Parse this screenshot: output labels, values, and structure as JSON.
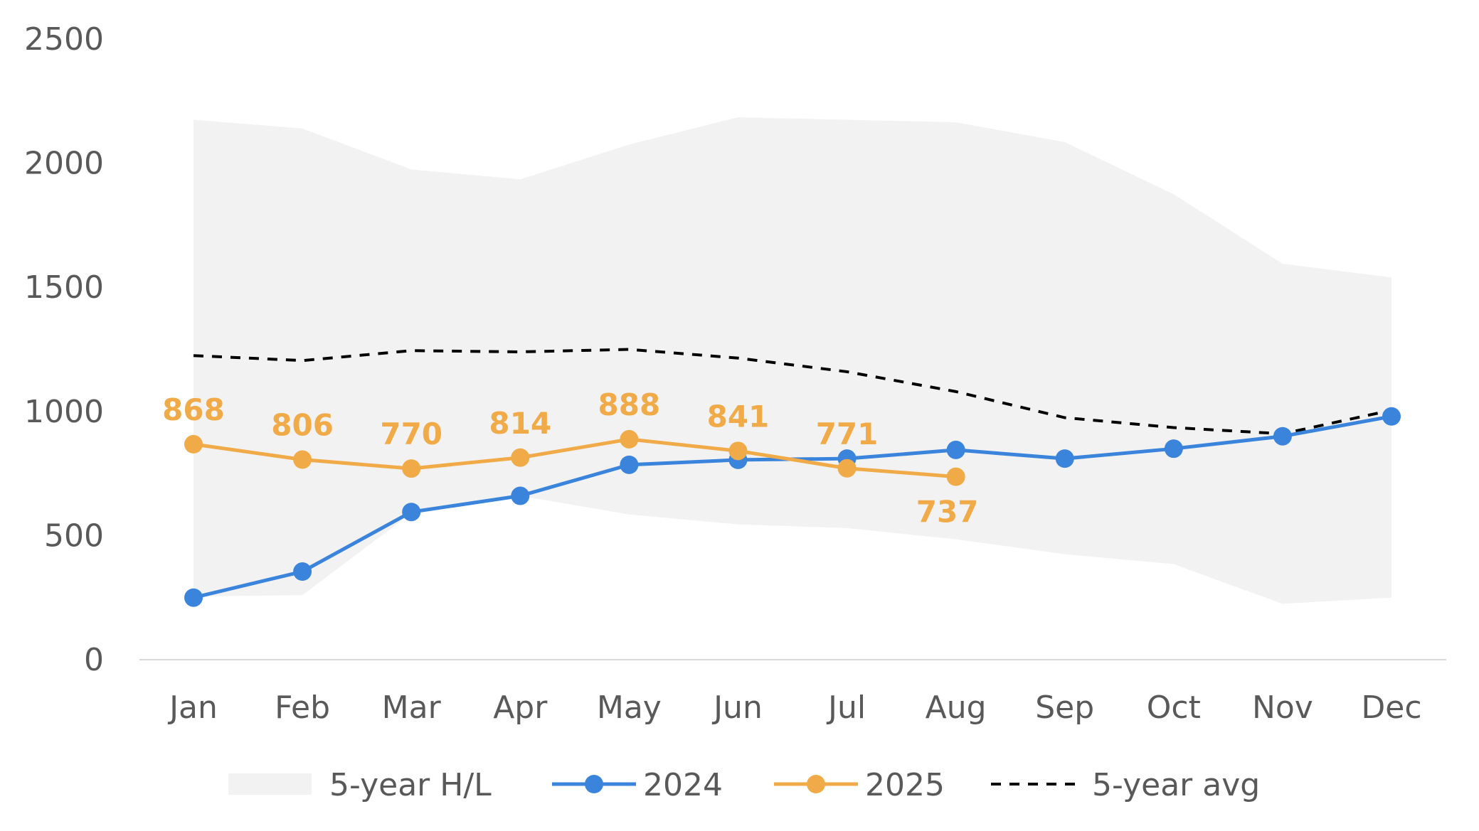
{
  "colors": {
    "band": "#F2F2F2",
    "series_2024": "#3B84DC",
    "series_2025": "#F0AB48",
    "avg": "#000000",
    "axis": "#D9D9D9",
    "text": "#595959"
  },
  "chart_data": {
    "type": "line",
    "categories": [
      "Jan",
      "Feb",
      "Mar",
      "Apr",
      "May",
      "Jun",
      "Jul",
      "Aug",
      "Sep",
      "Oct",
      "Nov",
      "Dec"
    ],
    "ylim": [
      0,
      2500
    ],
    "y_ticks": [
      "0",
      "500",
      "1000",
      "1500",
      "2000",
      "2500"
    ],
    "grid": false,
    "legend_position": "bottom",
    "band": {
      "name": "5-year H/L",
      "high": [
        2175,
        2140,
        1975,
        1935,
        2075,
        2185,
        2175,
        2165,
        2085,
        1875,
        1595,
        1540
      ],
      "low": [
        255,
        260,
        590,
        660,
        585,
        545,
        530,
        485,
        425,
        385,
        225,
        250
      ]
    },
    "series": [
      {
        "name": "2024",
        "values": [
          250,
          355,
          595,
          660,
          785,
          805,
          810,
          845,
          810,
          850,
          900,
          980
        ],
        "markers": true
      },
      {
        "name": "2025",
        "values": [
          868,
          806,
          770,
          814,
          888,
          841,
          771,
          737,
          null,
          null,
          null,
          null
        ],
        "markers": true,
        "data_labels": [
          "868",
          "806",
          "770",
          "814",
          "888",
          "841",
          "771",
          "737"
        ]
      },
      {
        "name": "5-year avg",
        "values": [
          1225,
          1205,
          1245,
          1240,
          1250,
          1215,
          1160,
          1080,
          975,
          935,
          910,
          1005
        ],
        "style": "dashed"
      }
    ]
  }
}
